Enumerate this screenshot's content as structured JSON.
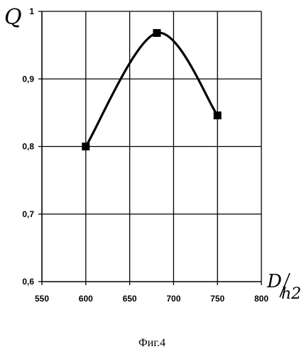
{
  "figure_caption": "Фиг.4",
  "chart_data": {
    "type": "line",
    "title": "",
    "ylabel": "Q",
    "xlabel_numerator": "D",
    "xlabel_denominator": "h2",
    "xlim": [
      550,
      800
    ],
    "ylim": [
      0.6,
      1.0
    ],
    "grid": true,
    "x_ticks": [
      550,
      600,
      650,
      700,
      750,
      800
    ],
    "x_tick_labels": [
      "550",
      "600",
      "650",
      "700",
      "750",
      "800"
    ],
    "y_ticks": [
      0.6,
      0.7,
      0.8,
      0.9,
      1.0
    ],
    "y_tick_labels": [
      "0,6",
      "0,7",
      "0,8",
      "0,9",
      "1"
    ],
    "series": [
      {
        "x": [
          600,
          681,
          750
        ],
        "y": [
          0.8,
          0.968,
          0.846
        ],
        "smooth": true,
        "marker": "square",
        "color": "#000000"
      }
    ]
  }
}
